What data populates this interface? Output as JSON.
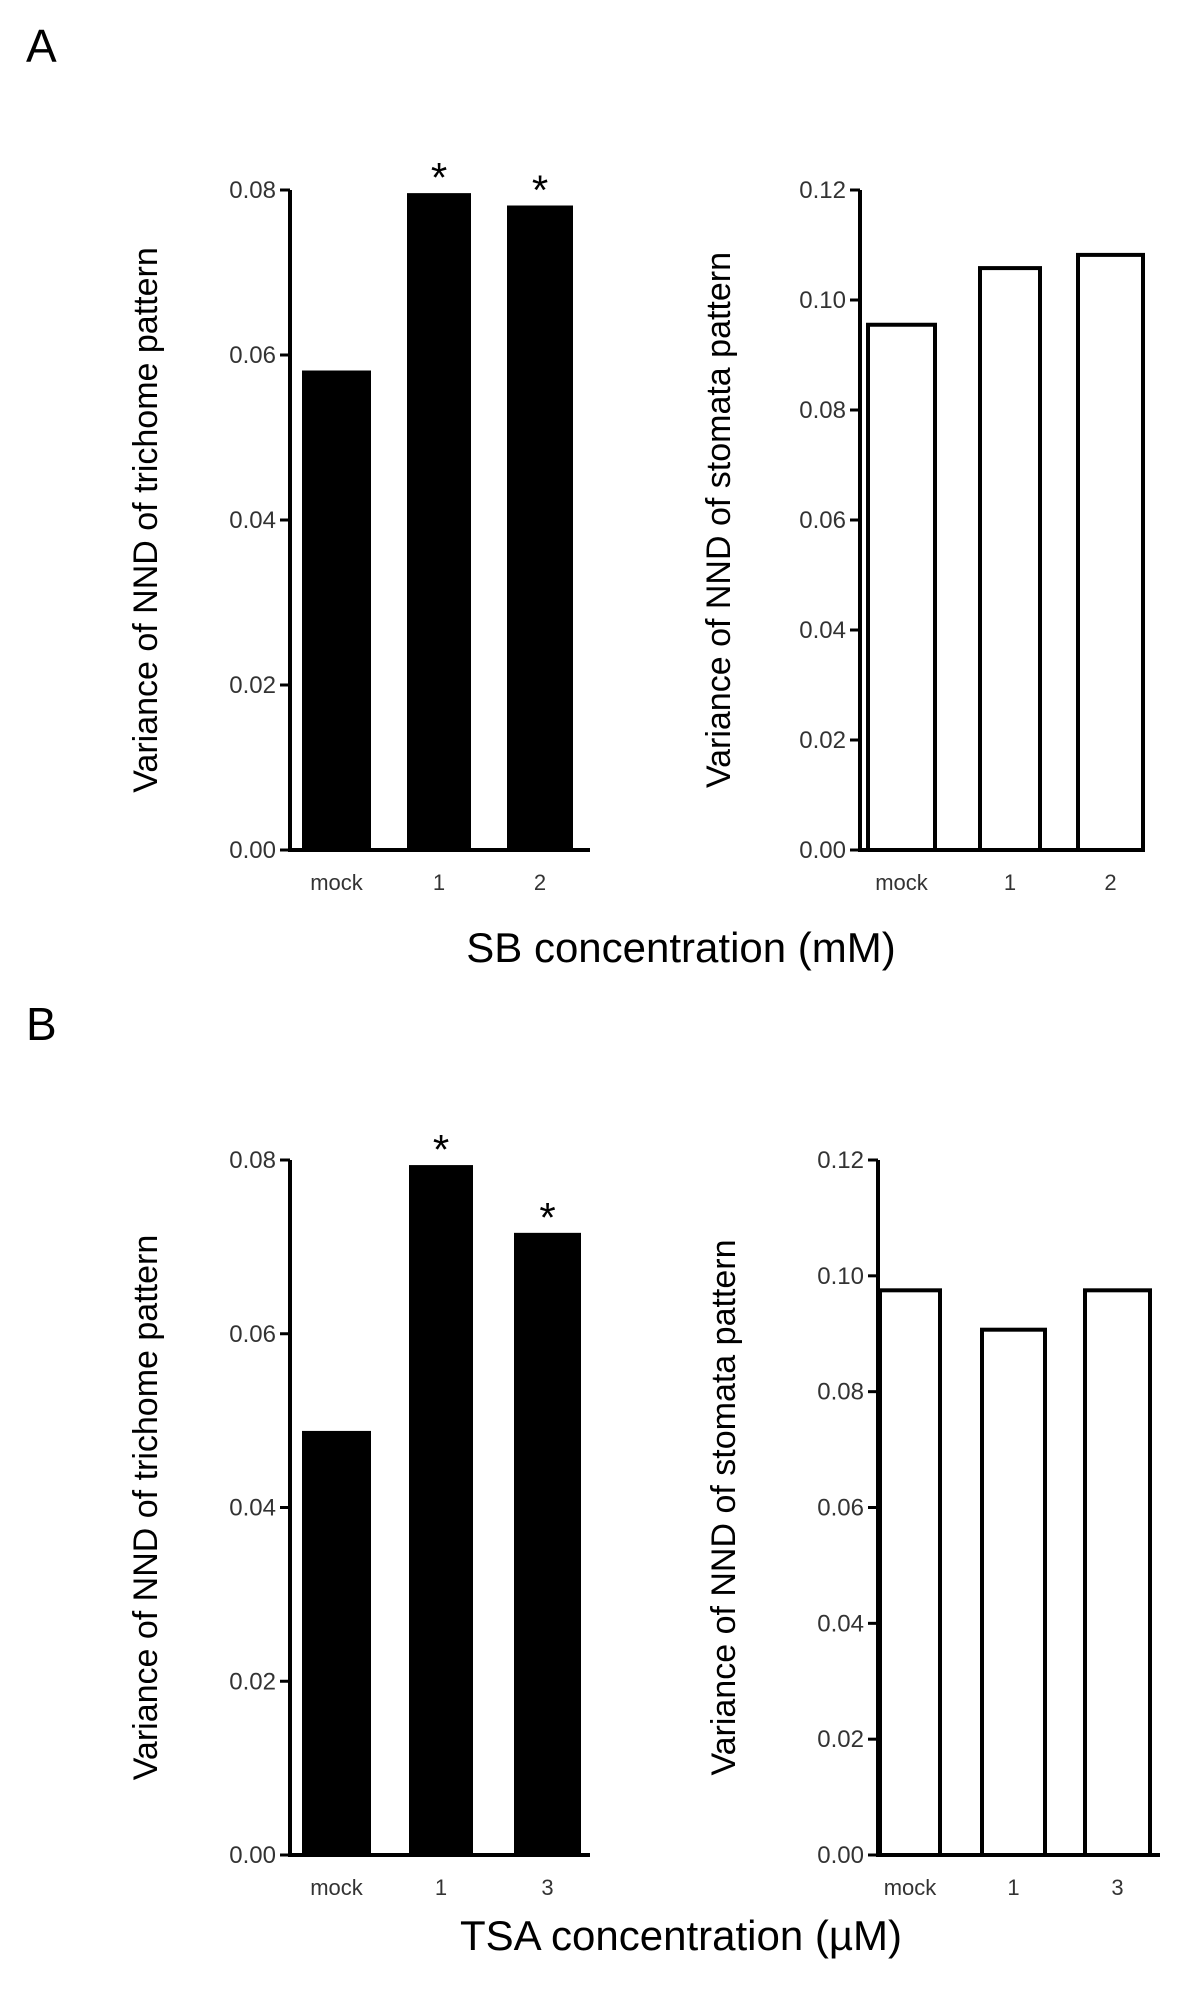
{
  "panels": [
    {
      "letter": "A",
      "xlabel": "SB concentration (mM)",
      "charts": [
        {
          "type": "bar",
          "fill": "#000000",
          "categories": [
            "mock",
            "1",
            "2"
          ],
          "values": [
            0.058,
            0.0795,
            0.078
          ],
          "significance": [
            "",
            "*",
            "*"
          ],
          "ylabel": "Variance of NND of trichome pattern",
          "ylim": [
            0,
            0.08
          ],
          "yticks": [
            "0.00",
            "0.02",
            "0.04",
            "0.06",
            "0.08"
          ]
        },
        {
          "type": "bar",
          "fill": "#ffffff",
          "categories": [
            "mock",
            "1",
            "2"
          ],
          "values": [
            0.0955,
            0.1058,
            0.1082
          ],
          "significance": [
            "",
            "",
            ""
          ],
          "ylabel": "Variance of NND of stomata pattern",
          "ylim": [
            0,
            0.12
          ],
          "yticks": [
            "0.00",
            "0.02",
            "0.04",
            "0.06",
            "0.08",
            "0.10",
            "0.12"
          ]
        }
      ]
    },
    {
      "letter": "B",
      "xlabel": "TSA concentration (µM)",
      "charts": [
        {
          "type": "bar",
          "fill": "#000000",
          "categories": [
            "mock",
            "1",
            "3"
          ],
          "values": [
            0.0487,
            0.0793,
            0.0715
          ],
          "significance": [
            "",
            "*",
            "*"
          ],
          "ylabel": "Variance of NND of trichome pattern",
          "ylim": [
            0,
            0.08
          ],
          "yticks": [
            "0.00",
            "0.02",
            "0.04",
            "0.06",
            "0.08"
          ]
        },
        {
          "type": "bar",
          "fill": "#ffffff",
          "categories": [
            "mock",
            "1",
            "3"
          ],
          "values": [
            0.0975,
            0.0907,
            0.0975
          ],
          "significance": [
            "",
            "",
            ""
          ],
          "ylabel": "Variance of NND of stomata pattern",
          "ylim": [
            0,
            0.12
          ],
          "yticks": [
            "0.00",
            "0.02",
            "0.04",
            "0.06",
            "0.08",
            "0.10",
            "0.12"
          ]
        }
      ]
    }
  ]
}
